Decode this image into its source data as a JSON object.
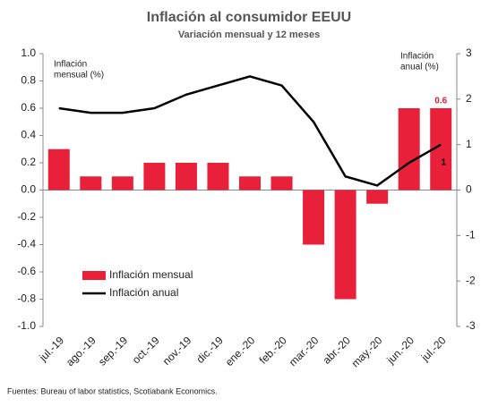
{
  "chart_data": {
    "type": "bar-line",
    "title": "Inflación al consumidor EEUU",
    "subtitle": "Variación mensual y 12 meses",
    "y_label": [
      "Inflación",
      "mensual (%)"
    ],
    "y2_label": [
      "Inflación",
      "anual (%)"
    ],
    "source": "Fuentes:  Bureau of labor statistics, Scotiabank Economics.",
    "categories": [
      "jul.-19",
      "ago.-19",
      "sep.-19",
      "oct.-19",
      "nov.-19",
      "dic.-19",
      "ene.-20",
      "feb.-20",
      "mar.-20",
      "abr.-20",
      "may.-20",
      "jun.-20",
      "jul.-20"
    ],
    "series": [
      {
        "name": "Inflación mensual",
        "type": "bar",
        "color": "#e8203a",
        "values": [
          0.3,
          0.1,
          0.1,
          0.2,
          0.2,
          0.2,
          0.1,
          0.1,
          -0.4,
          -0.8,
          -0.1,
          0.6,
          0.6
        ],
        "value_labels": [
          null,
          null,
          null,
          null,
          null,
          null,
          null,
          null,
          null,
          null,
          null,
          null,
          "0.6"
        ],
        "label_color": "#e8203a"
      },
      {
        "name": "Inflación anual",
        "type": "line",
        "axis": "y2",
        "color": "#000000",
        "values": [
          1.8,
          1.7,
          1.7,
          1.8,
          2.1,
          2.3,
          2.5,
          2.3,
          1.5,
          0.3,
          0.1,
          0.6,
          1.0
        ],
        "value_labels": [
          null,
          null,
          null,
          null,
          null,
          null,
          null,
          null,
          null,
          null,
          null,
          null,
          "1"
        ],
        "label_color": "#000000"
      }
    ],
    "ylim": [
      -1,
      1
    ],
    "yticks": [
      {
        "value": -1,
        "label": "-1.0"
      },
      -0.8,
      -0.6,
      -0.4,
      -0.2,
      {
        "value": 0,
        "label": "0.0"
      },
      0.2,
      0.4,
      0.6,
      0.8,
      {
        "value": 1,
        "label": "1.0"
      }
    ],
    "y2lim": [
      -3,
      3
    ],
    "y2ticks": [
      -3,
      -2,
      -1,
      0,
      1,
      2,
      3
    ],
    "legend": "lower-left"
  }
}
